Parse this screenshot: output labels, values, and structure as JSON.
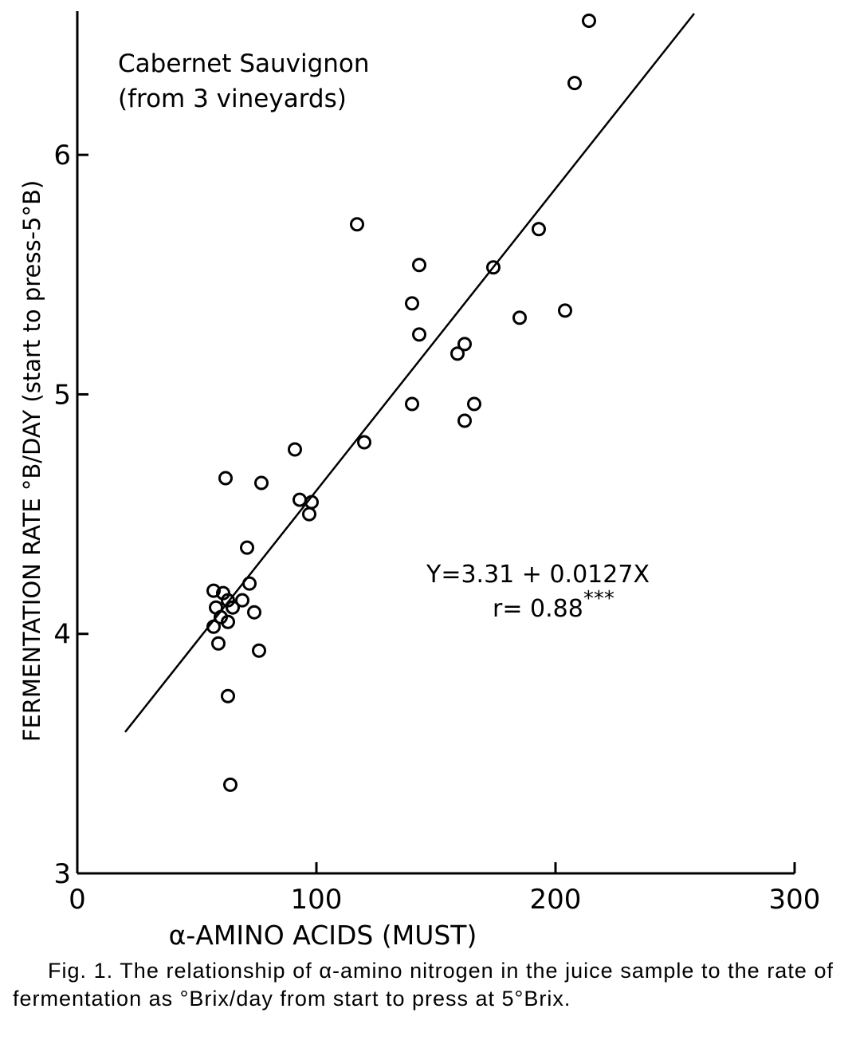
{
  "chart_data": {
    "type": "scatter",
    "title": "",
    "annotation_lines": [
      "Cabernet Sauvignon",
      "(from 3 vineyards)"
    ],
    "equation": "Y=3.31 + 0.0127X",
    "r_label": "r= 0.88",
    "r_stars": "***",
    "xlabel": "α-AMINO ACIDS (MUST)",
    "ylabel": "FERMENTATION RATE  °B/DAY (start to press-5°B)",
    "xlim": [
      0,
      300
    ],
    "ylim": [
      3,
      6.6
    ],
    "xticks": [
      0,
      100,
      200,
      300
    ],
    "xtick_labels": [
      "0",
      "100",
      "200",
      "300"
    ],
    "yticks": [
      3,
      4,
      5,
      6
    ],
    "ytick_labels": [
      "3",
      "4",
      "5",
      "6"
    ],
    "grid": false,
    "fit_line": {
      "x": [
        20,
        258
      ],
      "y": [
        3.59,
        6.59
      ]
    },
    "points": [
      {
        "x": 214,
        "y": 6.56
      },
      {
        "x": 208,
        "y": 6.3
      },
      {
        "x": 117,
        "y": 5.71
      },
      {
        "x": 193,
        "y": 5.69
      },
      {
        "x": 143,
        "y": 5.54
      },
      {
        "x": 174,
        "y": 5.53
      },
      {
        "x": 140,
        "y": 5.38
      },
      {
        "x": 204,
        "y": 5.35
      },
      {
        "x": 185,
        "y": 5.32
      },
      {
        "x": 143,
        "y": 5.25
      },
      {
        "x": 162,
        "y": 5.21
      },
      {
        "x": 159,
        "y": 5.17
      },
      {
        "x": 140,
        "y": 4.96
      },
      {
        "x": 166,
        "y": 4.96
      },
      {
        "x": 162,
        "y": 4.89
      },
      {
        "x": 120,
        "y": 4.8
      },
      {
        "x": 91,
        "y": 4.77
      },
      {
        "x": 62,
        "y": 4.65
      },
      {
        "x": 77,
        "y": 4.63
      },
      {
        "x": 93,
        "y": 4.56
      },
      {
        "x": 98,
        "y": 4.55
      },
      {
        "x": 97,
        "y": 4.5
      },
      {
        "x": 71,
        "y": 4.36
      },
      {
        "x": 72,
        "y": 4.21
      },
      {
        "x": 57,
        "y": 4.18
      },
      {
        "x": 61,
        "y": 4.17
      },
      {
        "x": 63,
        "y": 4.14
      },
      {
        "x": 69,
        "y": 4.14
      },
      {
        "x": 58,
        "y": 4.11
      },
      {
        "x": 65,
        "y": 4.11
      },
      {
        "x": 74,
        "y": 4.09
      },
      {
        "x": 60,
        "y": 4.07
      },
      {
        "x": 63,
        "y": 4.05
      },
      {
        "x": 57,
        "y": 4.03
      },
      {
        "x": 59,
        "y": 3.96
      },
      {
        "x": 76,
        "y": 3.93
      },
      {
        "x": 63,
        "y": 3.74
      },
      {
        "x": 64,
        "y": 3.37
      }
    ]
  },
  "caption": "Fig. 1. The relationship of α-amino nitrogen in the juice sample to the rate of fermentation as °Brix/day from start to press at 5°Brix."
}
